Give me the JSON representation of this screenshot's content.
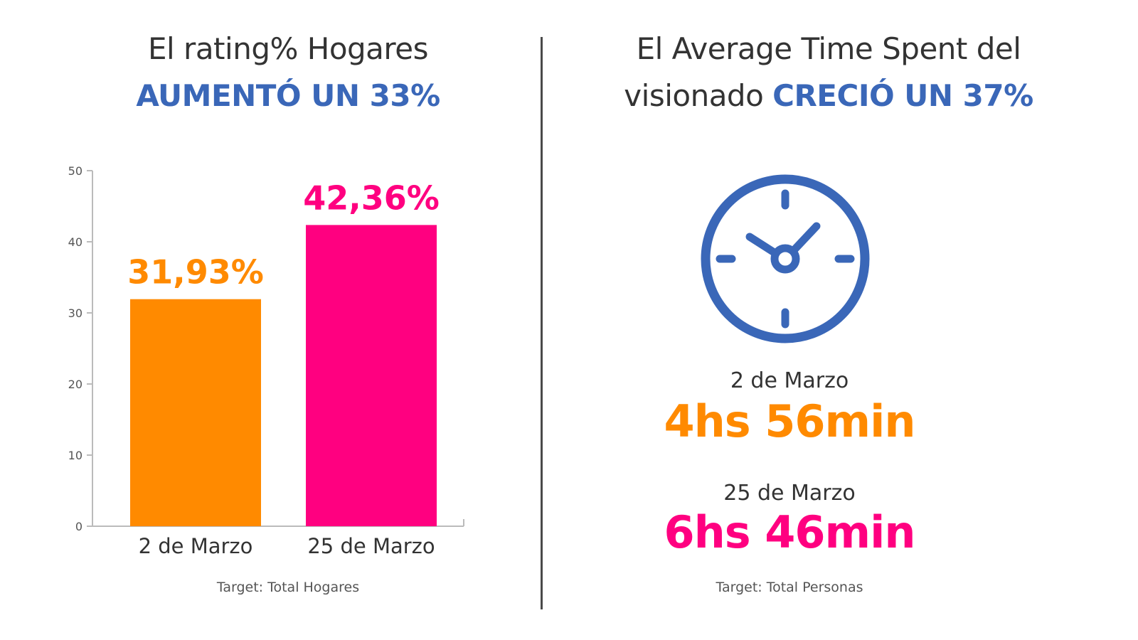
{
  "colors": {
    "orange": "#FF8A00",
    "pink": "#FF0080",
    "blue": "#3A67B8"
  },
  "left": {
    "title_line1": "El rating% Hogares",
    "title_line2_accent": "AUMENTÓ UN 33%",
    "target": "Target: Total Hogares"
  },
  "right": {
    "title_line1": "El Average Time Spent del",
    "title_line2_plain": "visionado",
    "title_line2_accent": "CRECIÓ UN 37%",
    "icon": "clock-icon",
    "stats": [
      {
        "label": "2 de Marzo",
        "value": "4hs 56min",
        "color": "#FF8A00"
      },
      {
        "label": "25 de Marzo",
        "value": "6hs 46min",
        "color": "#FF0080"
      }
    ],
    "target": "Target: Total Personas"
  },
  "chart_data": {
    "type": "bar",
    "categories": [
      "2 de Marzo",
      "25 de Marzo"
    ],
    "values": [
      31.93,
      42.36
    ],
    "data_labels": [
      "31,93%",
      "42,36%"
    ],
    "colors": [
      "#FF8A00",
      "#FF0080"
    ],
    "ylim": [
      0,
      50
    ],
    "yticks": [
      0,
      10,
      20,
      30,
      40,
      50
    ],
    "grid": false,
    "title": "",
    "xlabel": "",
    "ylabel": ""
  }
}
